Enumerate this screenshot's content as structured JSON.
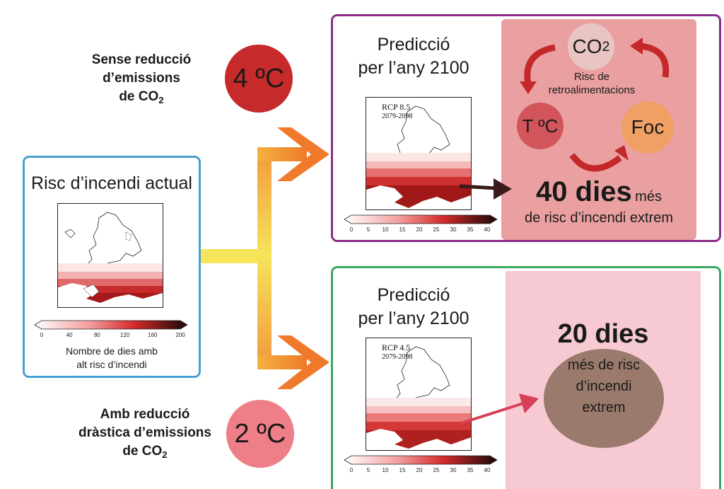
{
  "current": {
    "title": "Risc d’incendi actual",
    "colorbar_ticks": [
      "0",
      "40",
      "80",
      "120",
      "160",
      "200"
    ],
    "legend_line1": "Nombre de dies amb",
    "legend_line2": "alt risc d’incendi"
  },
  "scenario_high": {
    "line1": "Sense reducció",
    "line2": "d’emissions",
    "line3": "de CO",
    "sub": "2",
    "temperature": "4 ºC"
  },
  "scenario_low": {
    "line1": "Amb reducció",
    "line2": "dràstica d’emissions",
    "line3": "de CO",
    "sub": "2",
    "temperature": "2 ºC"
  },
  "prediction_high": {
    "title_line1": "Predicció",
    "title_line2": "per l’any 2100",
    "rcp": "RCP 8.5",
    "period": "2079-2098",
    "colorbar_ticks": [
      "0",
      "5",
      "10",
      "15",
      "20",
      "25",
      "30",
      "35",
      "40"
    ],
    "feedback_title_line1": "Risc de",
    "feedback_title_line2": "retroalimentacions",
    "co2": "CO",
    "co2_sub": "2",
    "temp_node": "T ºC",
    "fire_node": "Foc",
    "days": "40 dies",
    "days_suffix": "més",
    "days_line2": "de risc d’incendi extrem"
  },
  "prediction_low": {
    "title_line1": "Predicció",
    "title_line2": "per l’any 2100",
    "rcp": "RCP 4.5",
    "period": "2079-2098",
    "colorbar_ticks": [
      "0",
      "5",
      "10",
      "15",
      "20",
      "25",
      "30",
      "35",
      "40"
    ],
    "days": "20 dies",
    "text_line1": "més de risc",
    "text_line2": "d’incendi",
    "text_line3": "extrem"
  },
  "colors": {
    "current_border": "#4a9fd0",
    "high_border": "#8b2c86",
    "low_border": "#3aa864",
    "high_panel": "#eaa0a0",
    "low_panel": "#f7c9d3",
    "circle_4c": "#c62a2a",
    "circle_2c": "#ee7e87",
    "co2_node": "#e8c5c2",
    "temp_node": "#d1555a",
    "fire_node": "#f0a064",
    "feedback_arrow": "#c4282a",
    "brown_circle": "#9a7a6c",
    "pink_arrow": "#d8405a"
  }
}
